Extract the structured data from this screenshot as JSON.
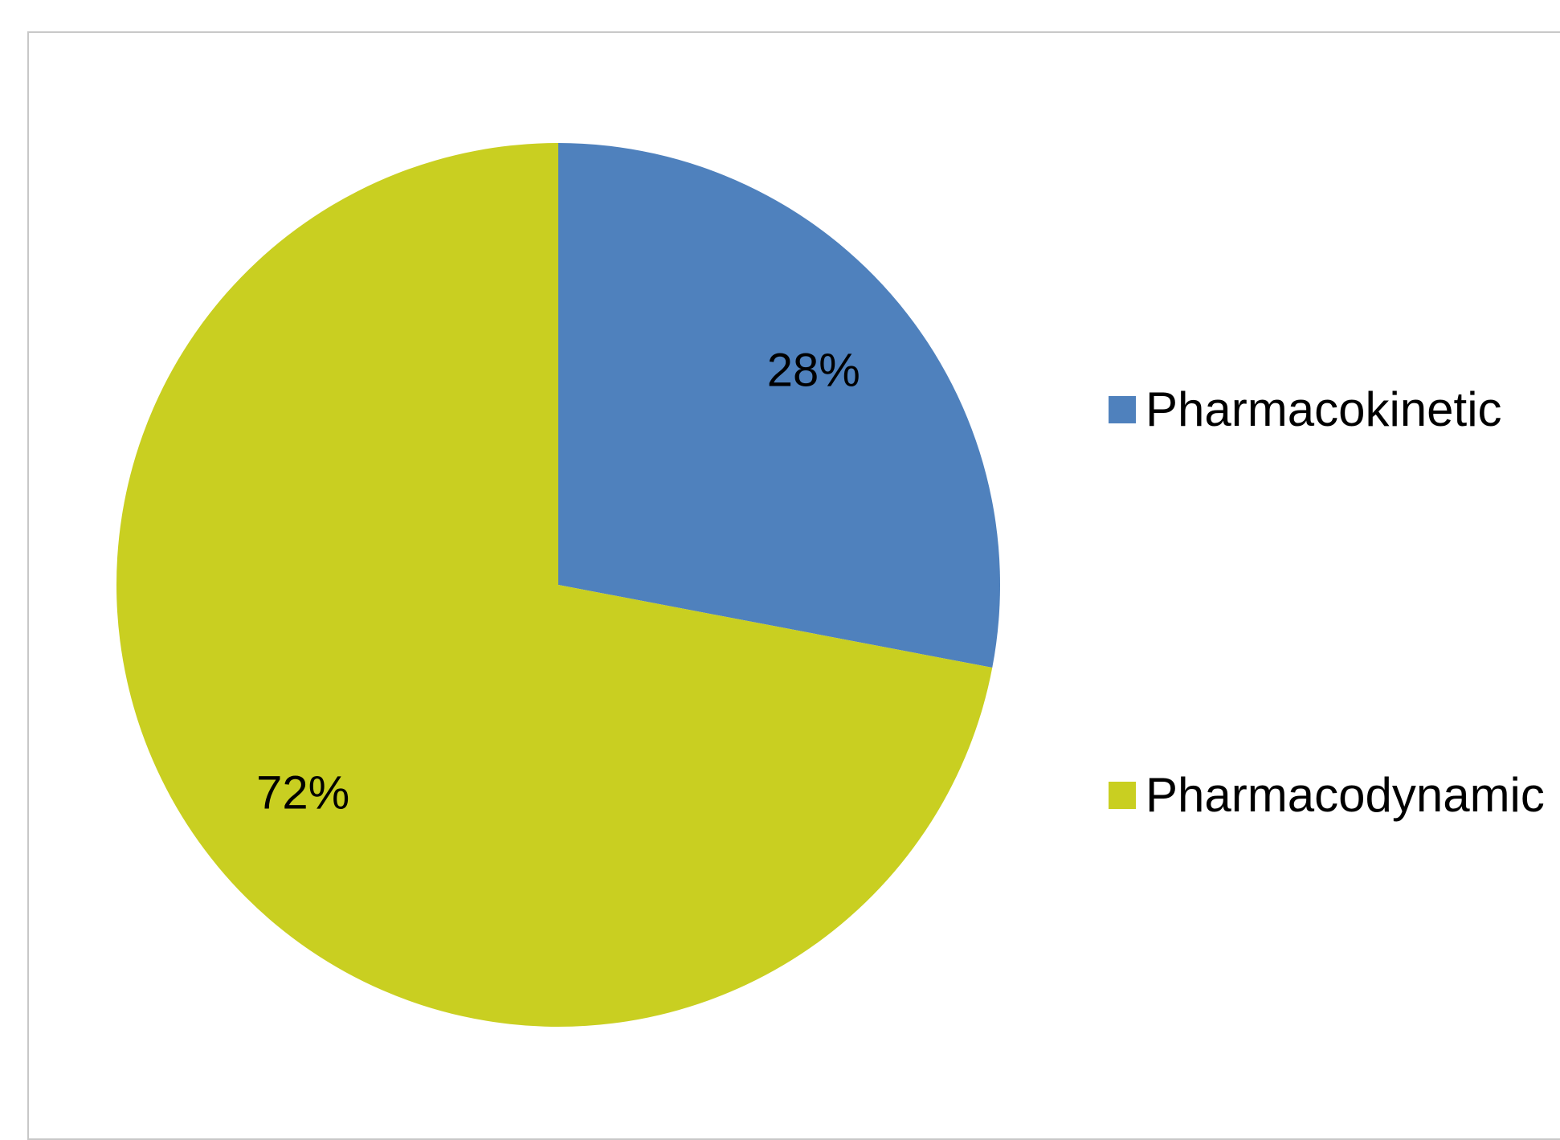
{
  "chart_data": {
    "type": "pie",
    "title": "",
    "slices": [
      {
        "label": "Pharmacokinetic",
        "value": 28,
        "display": "28%",
        "color": "#4f81bd"
      },
      {
        "label": "Pharmacodynamic",
        "value": 72,
        "display": "72%",
        "color": "#c9cf21"
      }
    ],
    "start_angle_deg": 0,
    "direction": "clockwise",
    "legend": {
      "position": "right"
    }
  }
}
